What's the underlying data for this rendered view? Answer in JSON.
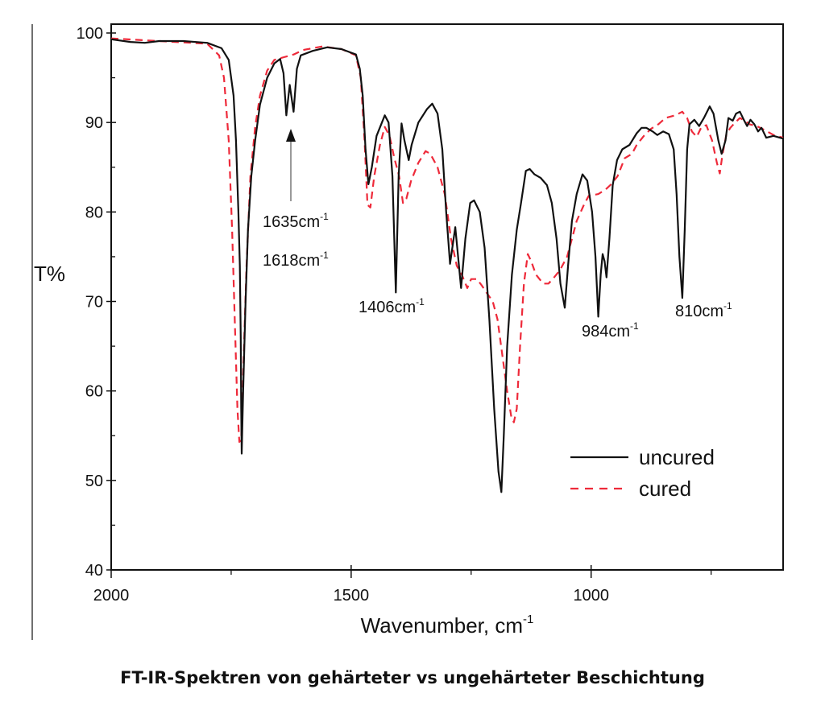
{
  "caption": "FT-IR-Spektren von gehärteter vs ungehärteter Beschichtung",
  "chart_data": {
    "type": "line",
    "title": "",
    "xlabel": "Wavenumber, cm",
    "xlabel_sup": "-1",
    "ylabel": "T%",
    "xlim": [
      2000,
      600
    ],
    "ylim": [
      40,
      100
    ],
    "x_reversed": true,
    "xticks": [
      2000,
      1500,
      1000
    ],
    "yticks": [
      40,
      50,
      60,
      70,
      80,
      90,
      100
    ],
    "grid": false,
    "legend_position": "bottom-right",
    "series": [
      {
        "name": "uncured",
        "color": "#111111",
        "style": "solid",
        "points": [
          [
            2000,
            99.3
          ],
          [
            1960,
            99.0
          ],
          [
            1930,
            98.9
          ],
          [
            1900,
            99.1
          ],
          [
            1850,
            99.1
          ],
          [
            1800,
            98.9
          ],
          [
            1770,
            98.3
          ],
          [
            1755,
            97
          ],
          [
            1745,
            93
          ],
          [
            1740,
            88
          ],
          [
            1735,
            80
          ],
          [
            1732,
            74
          ],
          [
            1730,
            66
          ],
          [
            1729,
            58
          ],
          [
            1728,
            53
          ],
          [
            1725,
            60
          ],
          [
            1720,
            70
          ],
          [
            1715,
            78
          ],
          [
            1708,
            84
          ],
          [
            1700,
            88
          ],
          [
            1690,
            92
          ],
          [
            1675,
            95
          ],
          [
            1660,
            96.6
          ],
          [
            1648,
            97.1
          ],
          [
            1641,
            95.5
          ],
          [
            1635,
            90.8
          ],
          [
            1628,
            94.2
          ],
          [
            1620,
            91.2
          ],
          [
            1613,
            96
          ],
          [
            1605,
            97.5
          ],
          [
            1580,
            98
          ],
          [
            1550,
            98.4
          ],
          [
            1520,
            98.2
          ],
          [
            1490,
            97.6
          ],
          [
            1482,
            96
          ],
          [
            1476,
            93
          ],
          [
            1470,
            87
          ],
          [
            1464,
            83.1
          ],
          [
            1457,
            85
          ],
          [
            1447,
            88.5
          ],
          [
            1430,
            90.8
          ],
          [
            1422,
            90
          ],
          [
            1414,
            84
          ],
          [
            1407,
            71
          ],
          [
            1401,
            84
          ],
          [
            1395,
            89.9
          ],
          [
            1389,
            88
          ],
          [
            1380,
            85.8
          ],
          [
            1374,
            87.5
          ],
          [
            1360,
            90
          ],
          [
            1342,
            91.5
          ],
          [
            1331,
            92.1
          ],
          [
            1320,
            91
          ],
          [
            1310,
            87
          ],
          [
            1302,
            80
          ],
          [
            1294,
            74.2
          ],
          [
            1283,
            78.3
          ],
          [
            1271,
            71.5
          ],
          [
            1262,
            77
          ],
          [
            1252,
            81
          ],
          [
            1244,
            81.3
          ],
          [
            1232,
            80
          ],
          [
            1222,
            76
          ],
          [
            1212,
            68
          ],
          [
            1202,
            58
          ],
          [
            1193,
            51
          ],
          [
            1187,
            48.7
          ],
          [
            1182,
            55
          ],
          [
            1175,
            65
          ],
          [
            1165,
            73
          ],
          [
            1155,
            78
          ],
          [
            1146,
            81
          ],
          [
            1136,
            84.6
          ],
          [
            1128,
            84.8
          ],
          [
            1118,
            84.2
          ],
          [
            1105,
            83.8
          ],
          [
            1092,
            83
          ],
          [
            1082,
            81
          ],
          [
            1072,
            77
          ],
          [
            1064,
            72
          ],
          [
            1055,
            69.3
          ],
          [
            1048,
            74
          ],
          [
            1040,
            79
          ],
          [
            1030,
            82
          ],
          [
            1018,
            84.2
          ],
          [
            1008,
            83.5
          ],
          [
            998,
            80
          ],
          [
            991,
            75
          ],
          [
            985,
            68.3
          ],
          [
            980,
            73
          ],
          [
            976,
            75.3
          ],
          [
            972,
            74.5
          ],
          [
            968,
            72.7
          ],
          [
            962,
            77
          ],
          [
            955,
            83
          ],
          [
            946,
            85.8
          ],
          [
            935,
            87
          ],
          [
            920,
            87.5
          ],
          [
            905,
            88.8
          ],
          [
            895,
            89.4
          ],
          [
            885,
            89.4
          ],
          [
            872,
            89
          ],
          [
            862,
            88.6
          ],
          [
            850,
            89
          ],
          [
            838,
            88.7
          ],
          [
            828,
            87
          ],
          [
            822,
            82
          ],
          [
            816,
            75
          ],
          [
            810,
            70.4
          ],
          [
            805,
            78
          ],
          [
            800,
            87
          ],
          [
            795,
            89.8
          ],
          [
            785,
            90.3
          ],
          [
            775,
            89.6
          ],
          [
            765,
            90.5
          ],
          [
            753,
            91.8
          ],
          [
            745,
            91
          ],
          [
            735,
            88
          ],
          [
            728,
            86.5
          ],
          [
            720,
            88
          ],
          [
            714,
            90.5
          ],
          [
            705,
            90.2
          ],
          [
            698,
            91
          ],
          [
            690,
            91.2
          ],
          [
            682,
            90.3
          ],
          [
            675,
            89.6
          ],
          [
            668,
            90.3
          ],
          [
            660,
            89.8
          ],
          [
            652,
            89
          ],
          [
            645,
            89.4
          ],
          [
            635,
            88.3
          ],
          [
            620,
            88.5
          ],
          [
            600,
            88.2
          ]
        ]
      },
      {
        "name": "cured",
        "color": "#ee2a3a",
        "style": "dashed",
        "points": [
          [
            2000,
            99.4
          ],
          [
            1900,
            99.1
          ],
          [
            1800,
            98.8
          ],
          [
            1775,
            97.5
          ],
          [
            1765,
            95
          ],
          [
            1755,
            88
          ],
          [
            1748,
            78
          ],
          [
            1742,
            67
          ],
          [
            1737,
            58
          ],
          [
            1733,
            54.3
          ],
          [
            1729,
            54.5
          ],
          [
            1725,
            62
          ],
          [
            1718,
            74
          ],
          [
            1710,
            84
          ],
          [
            1700,
            89.5
          ],
          [
            1690,
            93
          ],
          [
            1675,
            95.8
          ],
          [
            1660,
            97
          ],
          [
            1640,
            97.3
          ],
          [
            1620,
            97.6
          ],
          [
            1600,
            98.1
          ],
          [
            1560,
            98.5
          ],
          [
            1520,
            98.2
          ],
          [
            1490,
            97.5
          ],
          [
            1480,
            95
          ],
          [
            1472,
            88
          ],
          [
            1466,
            80.8
          ],
          [
            1460,
            80.5
          ],
          [
            1452,
            84
          ],
          [
            1440,
            87.5
          ],
          [
            1430,
            89.5
          ],
          [
            1420,
            88.5
          ],
          [
            1410,
            86
          ],
          [
            1400,
            84
          ],
          [
            1392,
            81
          ],
          [
            1385,
            81.5
          ],
          [
            1375,
            83.5
          ],
          [
            1360,
            85.5
          ],
          [
            1345,
            86.8
          ],
          [
            1335,
            86.5
          ],
          [
            1320,
            85
          ],
          [
            1305,
            82
          ],
          [
            1292,
            77
          ],
          [
            1280,
            74
          ],
          [
            1268,
            72.8
          ],
          [
            1258,
            71.5
          ],
          [
            1250,
            72.5
          ],
          [
            1238,
            72.5
          ],
          [
            1228,
            71.8
          ],
          [
            1218,
            71
          ],
          [
            1205,
            70
          ],
          [
            1195,
            68
          ],
          [
            1185,
            64
          ],
          [
            1175,
            60
          ],
          [
            1166,
            57
          ],
          [
            1161,
            56.5
          ],
          [
            1155,
            58
          ],
          [
            1148,
            65
          ],
          [
            1140,
            72
          ],
          [
            1132,
            75.3
          ],
          [
            1125,
            74.5
          ],
          [
            1115,
            73
          ],
          [
            1100,
            72
          ],
          [
            1089,
            72
          ],
          [
            1080,
            72.5
          ],
          [
            1065,
            73.5
          ],
          [
            1050,
            75
          ],
          [
            1040,
            77
          ],
          [
            1030,
            79
          ],
          [
            1015,
            80.8
          ],
          [
            1005,
            81.8
          ],
          [
            985,
            82
          ],
          [
            970,
            82.5
          ],
          [
            960,
            83
          ],
          [
            945,
            84
          ],
          [
            930,
            86
          ],
          [
            915,
            86.5
          ],
          [
            905,
            87.5
          ],
          [
            890,
            88.5
          ],
          [
            875,
            89.3
          ],
          [
            860,
            89.8
          ],
          [
            845,
            90.5
          ],
          [
            825,
            90.8
          ],
          [
            810,
            91.2
          ],
          [
            800,
            90.5
          ],
          [
            790,
            89
          ],
          [
            780,
            88.4
          ],
          [
            770,
            89.5
          ],
          [
            760,
            89.7
          ],
          [
            748,
            88
          ],
          [
            738,
            85.5
          ],
          [
            732,
            84.3
          ],
          [
            726,
            86.5
          ],
          [
            718,
            88.7
          ],
          [
            710,
            89.4
          ],
          [
            700,
            90
          ],
          [
            690,
            90.5
          ],
          [
            680,
            90.2
          ],
          [
            670,
            89.8
          ],
          [
            655,
            89.6
          ],
          [
            640,
            89.2
          ],
          [
            620,
            88.6
          ],
          [
            600,
            88.3
          ]
        ]
      }
    ],
    "annotations": [
      {
        "text": "1635cm",
        "sup": "-1",
        "wavenumber": 1635,
        "arrow": true
      },
      {
        "text": "1618cm",
        "sup": "-1",
        "wavenumber": 1618
      },
      {
        "text": "1406cm",
        "sup": "-1",
        "wavenumber": 1406
      },
      {
        "text": "984cm",
        "sup": "-1",
        "wavenumber": 984
      },
      {
        "text": "810cm",
        "sup": "-1",
        "wavenumber": 810
      }
    ]
  }
}
